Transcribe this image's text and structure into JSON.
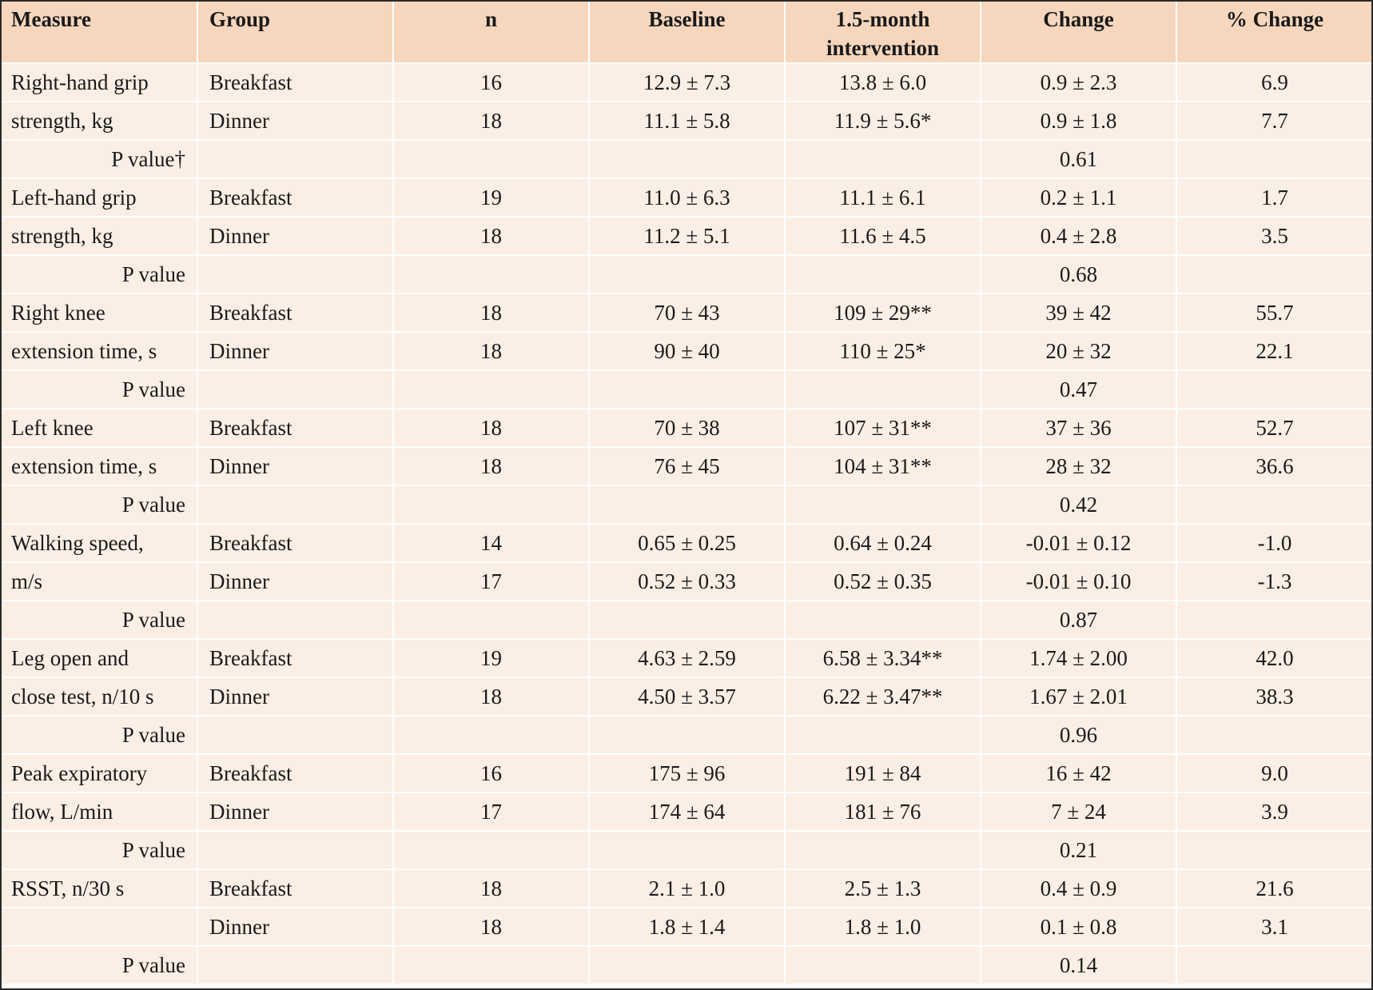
{
  "header": {
    "measure": "Measure",
    "group": "Group",
    "n": "n",
    "baseline": "Baseline",
    "intervention_line1": "1.5-month",
    "intervention_line2": "intervention",
    "change": "Change",
    "pct_change": "% Change"
  },
  "rows": [
    {
      "measure": "Right-hand grip",
      "group": "Breakfast",
      "n": "16",
      "baseline": "12.9 ± 7.3",
      "intervention": "13.8 ± 6.0",
      "change": "0.9 ± 2.3",
      "pct": "6.9"
    },
    {
      "measure": "strength, kg",
      "group": "Dinner",
      "n": "18",
      "baseline": "11.1 ± 5.8",
      "intervention": "11.9 ± 5.6*",
      "change": "0.9 ± 1.8",
      "pct": "7.7"
    },
    {
      "pvalue_label": "P value†",
      "change": "0.61"
    },
    {
      "measure": "Left-hand grip",
      "group": "Breakfast",
      "n": "19",
      "baseline": "11.0 ± 6.3",
      "intervention": "11.1 ± 6.1",
      "change": "0.2 ± 1.1",
      "pct": "1.7"
    },
    {
      "measure": "strength, kg",
      "group": "Dinner",
      "n": "18",
      "baseline": "11.2 ± 5.1",
      "intervention": "11.6 ± 4.5",
      "change": "0.4 ± 2.8",
      "pct": "3.5"
    },
    {
      "pvalue_label": "P value",
      "change": "0.68"
    },
    {
      "measure": "Right knee",
      "group": "Breakfast",
      "n": "18",
      "baseline": "70 ± 43",
      "intervention": "109 ± 29**",
      "change": "39 ± 42",
      "pct": "55.7"
    },
    {
      "measure": "extension time, s",
      "group": "Dinner",
      "n": "18",
      "baseline": "90 ± 40",
      "intervention": "110 ± 25*",
      "change": "20 ± 32",
      "pct": "22.1"
    },
    {
      "pvalue_label": "P value",
      "change": "0.47"
    },
    {
      "measure": "Left knee",
      "group": "Breakfast",
      "n": "18",
      "baseline": "70 ± 38",
      "intervention": "107 ± 31**",
      "change": "37 ± 36",
      "pct": "52.7"
    },
    {
      "measure": "extension time, s",
      "group": "Dinner",
      "n": "18",
      "baseline": "76 ± 45",
      "intervention": "104 ± 31**",
      "change": "28 ± 32",
      "pct": "36.6"
    },
    {
      "pvalue_label": "P value",
      "change": "0.42"
    },
    {
      "measure": "Walking speed,",
      "group": "Breakfast",
      "n": "14",
      "baseline": "0.65 ± 0.25",
      "intervention": "0.64 ± 0.24",
      "change": "-0.01 ± 0.12",
      "pct": "-1.0"
    },
    {
      "measure": "m/s",
      "group": "Dinner",
      "n": "17",
      "baseline": "0.52 ± 0.33",
      "intervention": "0.52 ± 0.35",
      "change": "-0.01 ± 0.10",
      "pct": "-1.3"
    },
    {
      "pvalue_label": "P value",
      "change": "0.87"
    },
    {
      "measure": "Leg open and",
      "group": "Breakfast",
      "n": "19",
      "baseline": "4.63 ± 2.59",
      "intervention": "6.58 ± 3.34**",
      "change": "1.74 ± 2.00",
      "pct": "42.0"
    },
    {
      "measure": "close test, n/10 s",
      "group": "Dinner",
      "n": "18",
      "baseline": "4.50 ± 3.57",
      "intervention": "6.22 ± 3.47**",
      "change": "1.67 ± 2.01",
      "pct": "38.3"
    },
    {
      "pvalue_label": "P value",
      "change": "0.96"
    },
    {
      "measure": "Peak expiratory",
      "group": "Breakfast",
      "n": "16",
      "baseline": "175 ± 96",
      "intervention": "191 ± 84",
      "change": "16 ± 42",
      "pct": "9.0"
    },
    {
      "measure": "flow, L/min",
      "group": "Dinner",
      "n": "17",
      "baseline": "174 ± 64",
      "intervention": "181 ± 76",
      "change": "7 ± 24",
      "pct": "3.9"
    },
    {
      "pvalue_label": "P value",
      "change": "0.21"
    },
    {
      "measure": "RSST, n/30 s",
      "group": "Breakfast",
      "n": "18",
      "baseline": "2.1 ± 1.0",
      "intervention": "2.5 ± 1.3",
      "change": "0.4 ± 0.9",
      "pct": "21.6"
    },
    {
      "measure": "",
      "group": "Dinner",
      "n": "18",
      "baseline": "1.8 ± 1.4",
      "intervention": "1.8 ± 1.0",
      "change": "0.1 ± 0.8",
      "pct": "3.1"
    },
    {
      "pvalue_label": "P value",
      "change": "0.14"
    }
  ]
}
